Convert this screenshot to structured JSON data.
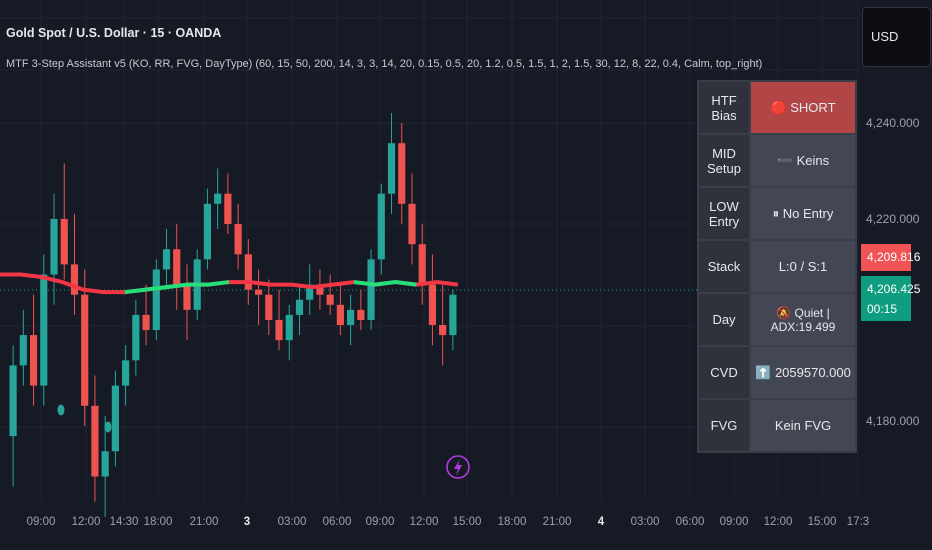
{
  "header": {
    "title": "Gold Spot / U.S. Dollar · 15 · OANDA",
    "indicator": "MTF 3-Step Assistant v5 (KO, RR, FVG, DayType) (60, 15, 50, 200, 14, 3, 3, 14, 20, 0.15, 0.5, 20, 1.2, 0.5, 1.5, 1, 2, 1.5, 30, 12, 8, 22, 0.4, Calm, top_right)"
  },
  "currency": "USD",
  "price_axis": {
    "labels": [
      "4,240.000",
      "4,220.000",
      "4,180.000"
    ],
    "label_values": [
      4240,
      4220,
      4180
    ],
    "tag_red": "4,209.816",
    "tag_green_price": "4,206.425",
    "tag_green_time": "00:15"
  },
  "time_axis": {
    "labels": [
      "09:00",
      "12:00",
      "14:30",
      "18:00",
      "21:00",
      "3",
      "03:00",
      "06:00",
      "09:00",
      "12:00",
      "15:00",
      "18:00",
      "21:00",
      "4",
      "03:00",
      "06:00",
      "09:00",
      "12:00",
      "15:00",
      "17:3"
    ],
    "bold": [
      false,
      false,
      false,
      false,
      false,
      true,
      false,
      false,
      false,
      false,
      false,
      false,
      false,
      true,
      false,
      false,
      false,
      false,
      false,
      false
    ]
  },
  "table": {
    "rows": [
      {
        "label": "HTF Bias",
        "value": "🔴 SHORT"
      },
      {
        "label": "MID Setup",
        "value": "➖ Keins"
      },
      {
        "label": "LOW Entry",
        "value": "⏸ No Entry"
      },
      {
        "label": "Stack",
        "value": "L:0 / S:1"
      },
      {
        "label": "Day",
        "value": "🔕 Quiet | ADX:19.499"
      },
      {
        "label": "CVD",
        "value": "⬆️ 2059570.000"
      },
      {
        "label": "FVG",
        "value": "Kein FVG"
      }
    ]
  },
  "colors": {
    "background": "#161a25",
    "bull": "#26a69a",
    "bear": "#ef5350",
    "ma_bear": "#f23645",
    "ma_bull": "#22e07a",
    "short_cell": "#b24545",
    "lightning": "#b23be0"
  },
  "icons": {
    "lightning": "lightning-icon"
  },
  "chart_data": {
    "type": "candlestick",
    "series": [
      {
        "name": "moving-average",
        "values": [
          4210,
          4210,
          4209.5,
          4208.5,
          4207,
          4206.5,
          4206.5,
          4207,
          4207.5,
          4208,
          4208,
          4208.5,
          4208.5,
          4208,
          4208,
          4207.5,
          4208,
          4208.5,
          4208,
          4208.5,
          4208,
          4208.5,
          4208
        ]
      }
    ],
    "ohlc": [
      [
        4178,
        4196,
        4168,
        4192
      ],
      [
        4192,
        4203,
        4188,
        4198
      ],
      [
        4198,
        4206,
        4184,
        4188
      ],
      [
        4188,
        4214,
        4184,
        4210
      ],
      [
        4210,
        4226,
        4204,
        4221
      ],
      [
        4221,
        4232,
        4209,
        4212
      ],
      [
        4212,
        4222,
        4202,
        4206
      ],
      [
        4206,
        4211,
        4180,
        4184
      ],
      [
        4184,
        4190,
        4165,
        4170
      ],
      [
        4170,
        4182,
        4162,
        4175
      ],
      [
        4175,
        4191,
        4172,
        4188
      ],
      [
        4188,
        4196,
        4184,
        4193
      ],
      [
        4193,
        4205,
        4190,
        4202
      ],
      [
        4202,
        4208,
        4196,
        4199
      ],
      [
        4199,
        4213,
        4197,
        4211
      ],
      [
        4211,
        4219,
        4207,
        4215
      ],
      [
        4215,
        4220,
        4203,
        4208
      ],
      [
        4208,
        4212,
        4197,
        4203
      ],
      [
        4203,
        4215,
        4201,
        4213
      ],
      [
        4213,
        4227,
        4211,
        4224
      ],
      [
        4224,
        4231,
        4219,
        4226
      ],
      [
        4226,
        4230,
        4218,
        4220
      ],
      [
        4220,
        4224,
        4211,
        4214
      ],
      [
        4214,
        4217,
        4204,
        4207
      ],
      [
        4207,
        4211,
        4200,
        4206
      ],
      [
        4206,
        4209,
        4198,
        4201
      ],
      [
        4201,
        4207,
        4195,
        4197
      ],
      [
        4197,
        4204,
        4193,
        4202
      ],
      [
        4202,
        4208,
        4198,
        4205
      ],
      [
        4205,
        4212,
        4202,
        4208
      ],
      [
        4208,
        4211,
        4203,
        4206
      ],
      [
        4206,
        4210,
        4202,
        4204
      ],
      [
        4204,
        4208,
        4198,
        4200
      ],
      [
        4200,
        4206,
        4196,
        4203
      ],
      [
        4203,
        4207,
        4199,
        4201
      ],
      [
        4201,
        4215,
        4199,
        4213
      ],
      [
        4213,
        4228,
        4210,
        4226
      ],
      [
        4226,
        4242,
        4222,
        4236
      ],
      [
        4236,
        4240,
        4220,
        4224
      ],
      [
        4224,
        4230,
        4212,
        4216
      ],
      [
        4216,
        4220,
        4204,
        4208
      ],
      [
        4208,
        4214,
        4196,
        4200
      ],
      [
        4200,
        4208,
        4192,
        4198
      ],
      [
        4198,
        4207,
        4195,
        4206
      ]
    ]
  }
}
